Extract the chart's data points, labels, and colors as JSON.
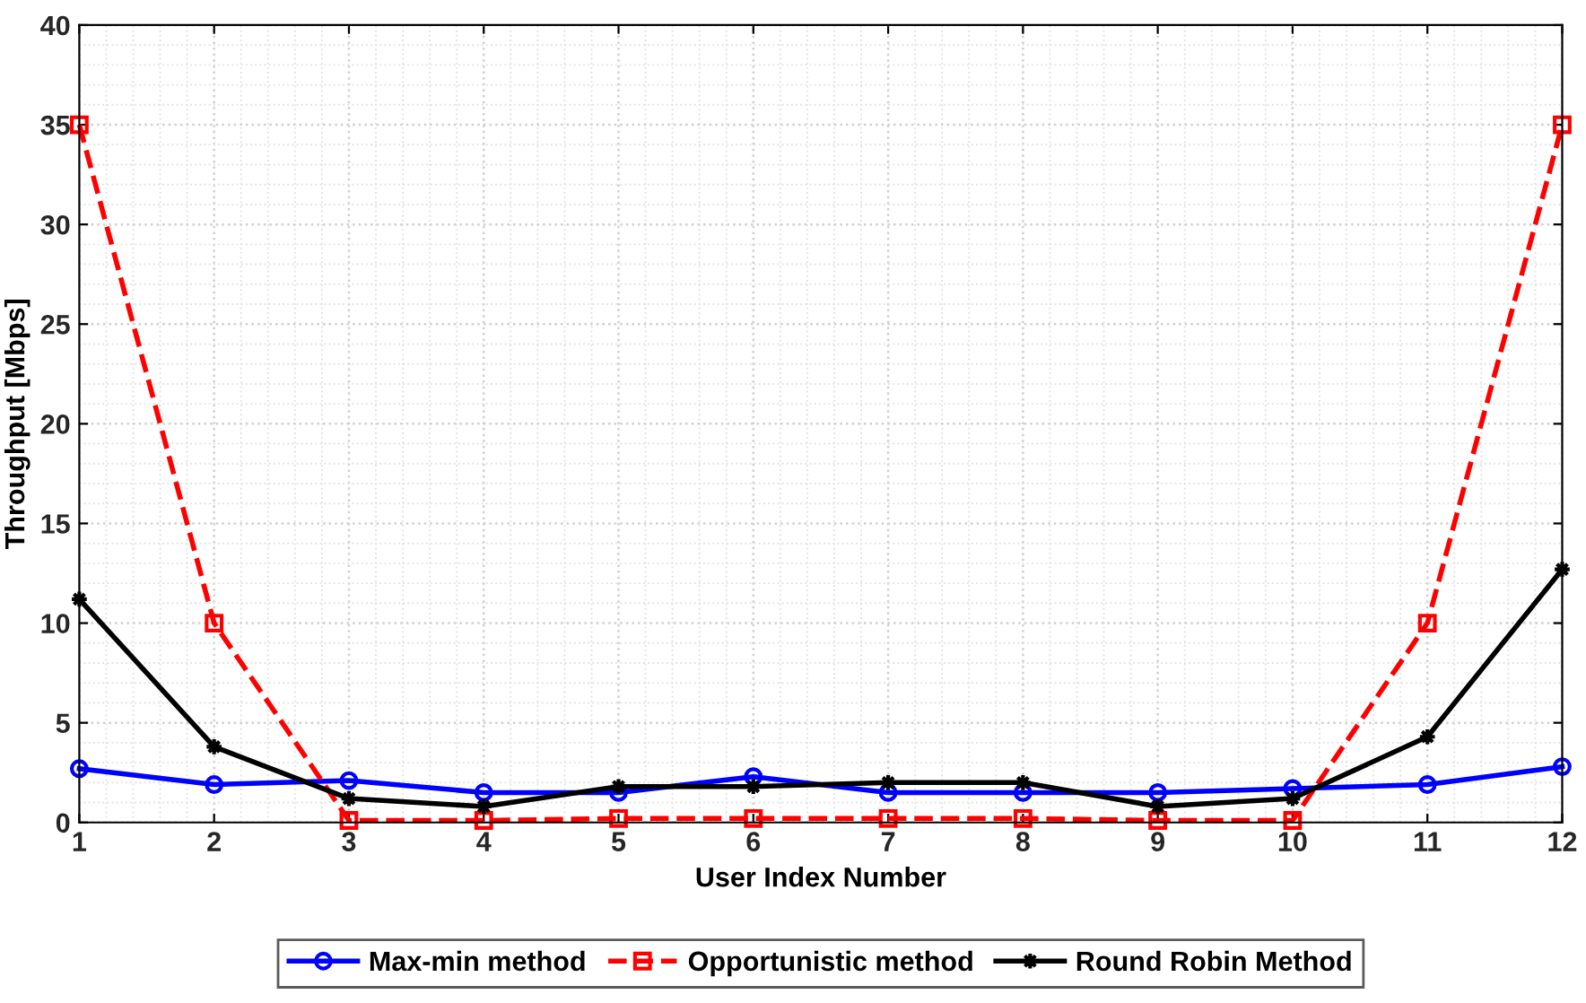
{
  "chart_data": {
    "type": "line",
    "xlabel": "User Index Number",
    "ylabel": "Throughput [Mbps]",
    "x": [
      1,
      2,
      3,
      4,
      5,
      6,
      7,
      8,
      9,
      10,
      11,
      12
    ],
    "xlim": [
      1,
      12
    ],
    "xticks": [
      1,
      2,
      3,
      4,
      5,
      6,
      7,
      8,
      9,
      10,
      11,
      12
    ],
    "ylim": [
      0,
      40
    ],
    "yticks": [
      0,
      5,
      10,
      15,
      20,
      25,
      30,
      35,
      40
    ],
    "grid": true,
    "legend": "bottom",
    "series": [
      {
        "name": "Max-min method",
        "color": "#0000ff",
        "marker": "circle",
        "line_style": "solid",
        "values": [
          2.7,
          1.9,
          2.1,
          1.5,
          1.5,
          2.3,
          1.5,
          1.5,
          1.5,
          1.7,
          1.9,
          2.8
        ]
      },
      {
        "name": "Opportunistic method",
        "color": "#ff0000",
        "marker": "square",
        "line_style": "dashed",
        "values": [
          35,
          10,
          0.1,
          0.1,
          0.2,
          0.2,
          0.2,
          0.2,
          0.1,
          0.1,
          10,
          35
        ]
      },
      {
        "name": "Round Robin Method",
        "color": "#000000",
        "marker": "star",
        "line_style": "solid",
        "values": [
          11.2,
          3.8,
          1.2,
          0.8,
          1.8,
          1.8,
          2.0,
          2.0,
          0.8,
          1.2,
          4.3,
          12.7
        ]
      }
    ]
  }
}
